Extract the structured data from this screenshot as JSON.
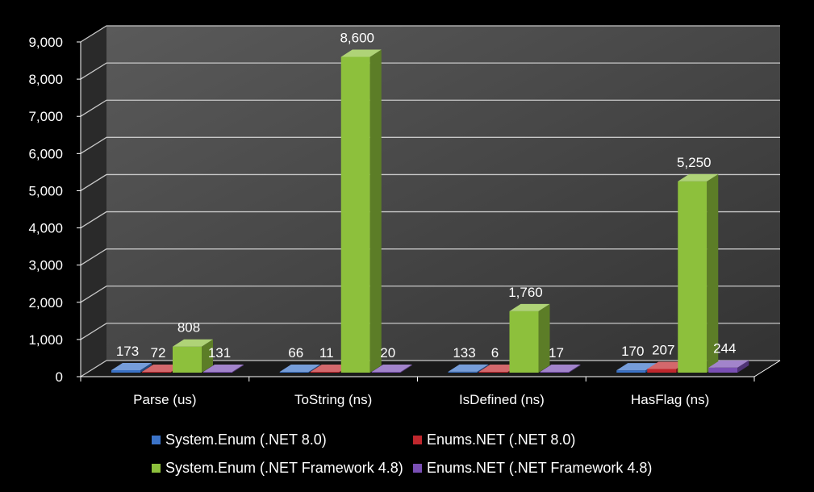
{
  "chart_data": {
    "type": "bar",
    "categories": [
      "Parse (us)",
      "ToString (ns)",
      "IsDefined (ns)",
      "HasFlag (ns)"
    ],
    "series": [
      {
        "name": "System.Enum (.NET 8.0)",
        "values": [
          173,
          66,
          133,
          170
        ],
        "labels": [
          "173",
          "66",
          "133",
          "170"
        ],
        "color": "#3b73c8"
      },
      {
        "name": "Enums.NET (.NET 8.0)",
        "values": [
          72,
          11,
          6,
          207
        ],
        "labels": [
          "72",
          "11",
          "6",
          "207"
        ],
        "color": "#c0272d"
      },
      {
        "name": "System.Enum (.NET Framework 4.8)",
        "values": [
          808,
          8600,
          1760,
          5250
        ],
        "labels": [
          "808",
          "8,600",
          "1,760",
          "5,250"
        ],
        "color": "#8dc03c"
      },
      {
        "name": "Enums.NET (.NET Framework 4.8)",
        "values": [
          131,
          20,
          17,
          244
        ],
        "labels": [
          "131",
          "20",
          "17",
          "244"
        ],
        "color": "#7a4fb5"
      }
    ],
    "yticks": [
      "0",
      "1,000",
      "2,000",
      "3,000",
      "4,000",
      "5,000",
      "6,000",
      "7,000",
      "8,000",
      "9,000"
    ],
    "ylim": [
      0,
      9000
    ],
    "grid": true,
    "legend_position": "bottom",
    "style": "3d-column"
  }
}
